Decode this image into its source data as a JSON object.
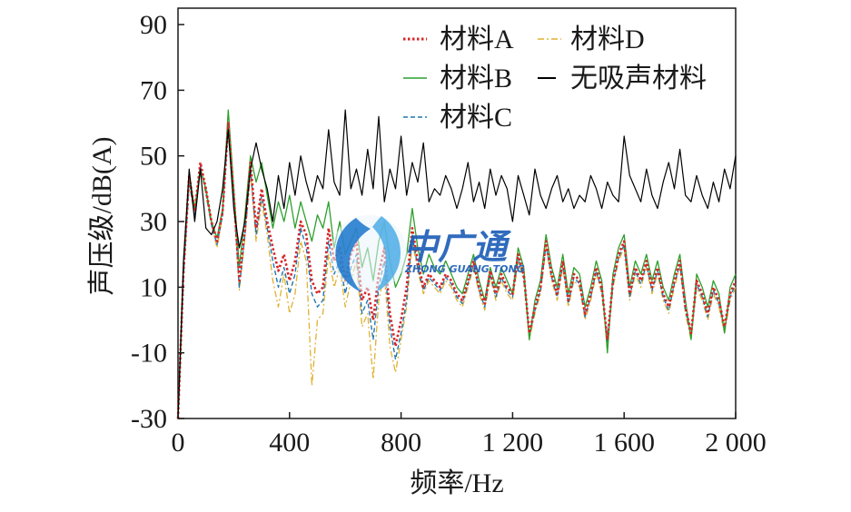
{
  "chart_data": {
    "type": "line",
    "title": "",
    "xlabel": "频率/Hz",
    "ylabel": "声压级/dB(A)",
    "xlim": [
      0,
      2000
    ],
    "ylim": [
      -30,
      95
    ],
    "x_ticks": [
      0,
      400,
      800,
      1200,
      1600,
      2000
    ],
    "x_tick_labels": [
      "0",
      "400",
      "800",
      "1 200",
      "1 600",
      "2 000"
    ],
    "y_ticks": [
      -30,
      -10,
      10,
      30,
      50,
      70,
      90
    ],
    "y_tick_labels": [
      "-30",
      "-10",
      "10",
      "30",
      "50",
      "70",
      "90"
    ],
    "grid": false,
    "legend_position": "top-right",
    "x": [
      0,
      20,
      40,
      60,
      80,
      100,
      120,
      140,
      160,
      180,
      200,
      220,
      240,
      260,
      280,
      300,
      320,
      340,
      360,
      380,
      400,
      420,
      440,
      460,
      480,
      500,
      520,
      540,
      560,
      580,
      600,
      620,
      640,
      660,
      680,
      700,
      720,
      740,
      760,
      780,
      800,
      820,
      840,
      860,
      880,
      900,
      920,
      940,
      960,
      980,
      1000,
      1020,
      1040,
      1060,
      1080,
      1100,
      1120,
      1140,
      1160,
      1180,
      1200,
      1220,
      1240,
      1260,
      1280,
      1300,
      1320,
      1340,
      1360,
      1380,
      1400,
      1420,
      1440,
      1460,
      1480,
      1500,
      1520,
      1540,
      1560,
      1580,
      1600,
      1620,
      1640,
      1660,
      1680,
      1700,
      1720,
      1740,
      1760,
      1780,
      1800,
      1820,
      1840,
      1860,
      1880,
      1900,
      1920,
      1940,
      1960,
      1980,
      2000
    ],
    "series": [
      {
        "name": "材料A",
        "color": "#d62728",
        "dash": "dotted",
        "values": [
          -30,
          15,
          44,
          33,
          48,
          40,
          30,
          24,
          33,
          60,
          38,
          12,
          28,
          48,
          28,
          40,
          30,
          22,
          15,
          20,
          12,
          18,
          30,
          26,
          12,
          8,
          10,
          28,
          18,
          22,
          12,
          20,
          24,
          6,
          10,
          0,
          14,
          22,
          2,
          -8,
          0,
          10,
          28,
          18,
          10,
          14,
          12,
          10,
          14,
          12,
          8,
          6,
          12,
          18,
          10,
          5,
          15,
          8,
          14,
          10,
          8,
          20,
          14,
          -4,
          4,
          10,
          24,
          14,
          8,
          18,
          6,
          14,
          12,
          2,
          8,
          16,
          10,
          -6,
          12,
          20,
          24,
          8,
          16,
          12,
          18,
          10,
          16,
          8,
          4,
          12,
          18,
          4,
          -4,
          12,
          8,
          2,
          10,
          6,
          -2,
          8,
          12
        ]
      },
      {
        "name": "材料B",
        "color": "#2ca02c",
        "dash": "solid",
        "values": [
          -30,
          18,
          44,
          34,
          46,
          40,
          30,
          25,
          34,
          64,
          40,
          16,
          32,
          50,
          42,
          48,
          38,
          28,
          36,
          30,
          38,
          28,
          36,
          30,
          24,
          32,
          28,
          36,
          22,
          30,
          20,
          24,
          28,
          16,
          22,
          12,
          24,
          30,
          18,
          10,
          14,
          20,
          34,
          22,
          14,
          20,
          16,
          14,
          18,
          14,
          10,
          8,
          14,
          20,
          12,
          6,
          16,
          10,
          16,
          12,
          8,
          22,
          16,
          -6,
          6,
          12,
          26,
          16,
          10,
          20,
          8,
          16,
          14,
          4,
          10,
          18,
          12,
          -10,
          14,
          22,
          26,
          10,
          18,
          14,
          20,
          12,
          18,
          10,
          6,
          14,
          20,
          6,
          -6,
          14,
          10,
          4,
          12,
          8,
          -4,
          10,
          14
        ]
      },
      {
        "name": "材料C",
        "color": "#1f77b4",
        "dash": "dashed",
        "values": [
          -30,
          14,
          42,
          32,
          47,
          39,
          29,
          23,
          32,
          60,
          37,
          10,
          26,
          46,
          26,
          38,
          28,
          18,
          10,
          16,
          8,
          14,
          28,
          22,
          8,
          4,
          6,
          24,
          14,
          18,
          8,
          16,
          20,
          2,
          6,
          -6,
          10,
          18,
          -2,
          -12,
          -4,
          6,
          26,
          16,
          9,
          13,
          11,
          9,
          13,
          11,
          7,
          5,
          11,
          17,
          9,
          4,
          14,
          7,
          13,
          9,
          7,
          19,
          13,
          -5,
          3,
          9,
          23,
          13,
          7,
          17,
          5,
          13,
          11,
          1,
          7,
          15,
          9,
          -7,
          11,
          19,
          23,
          7,
          15,
          11,
          17,
          9,
          15,
          7,
          3,
          11,
          17,
          3,
          -5,
          11,
          7,
          1,
          9,
          5,
          -3,
          7,
          11
        ]
      },
      {
        "name": "材料D",
        "color": "#e0b030",
        "dash": "dash-dot",
        "values": [
          -30,
          13,
          42,
          32,
          47,
          38,
          29,
          22,
          32,
          59,
          36,
          9,
          25,
          45,
          24,
          36,
          26,
          12,
          4,
          14,
          2,
          8,
          24,
          18,
          -20,
          0,
          2,
          20,
          10,
          16,
          4,
          12,
          18,
          -2,
          2,
          -18,
          6,
          14,
          -8,
          -16,
          -6,
          4,
          24,
          15,
          8,
          12,
          10,
          8,
          12,
          10,
          6,
          4,
          10,
          16,
          8,
          3,
          13,
          6,
          12,
          8,
          6,
          18,
          12,
          -6,
          2,
          8,
          22,
          12,
          6,
          16,
          4,
          12,
          10,
          0,
          6,
          14,
          8,
          -8,
          10,
          18,
          22,
          6,
          14,
          10,
          16,
          8,
          14,
          6,
          2,
          10,
          16,
          2,
          -6,
          10,
          6,
          0,
          8,
          4,
          -4,
          6,
          10
        ]
      },
      {
        "name": "无吸声材料",
        "color": "#000000",
        "dash": "solid",
        "values": [
          -30,
          18,
          46,
          30,
          46,
          28,
          26,
          30,
          40,
          58,
          34,
          22,
          30,
          46,
          54,
          46,
          40,
          30,
          44,
          34,
          48,
          38,
          50,
          42,
          36,
          44,
          40,
          58,
          42,
          38,
          64,
          40,
          46,
          38,
          52,
          40,
          62,
          36,
          46,
          40,
          56,
          38,
          48,
          42,
          54,
          36,
          40,
          38,
          44,
          40,
          34,
          40,
          48,
          36,
          42,
          34,
          46,
          38,
          44,
          40,
          30,
          44,
          38,
          32,
          46,
          38,
          34,
          40,
          44,
          36,
          40,
          34,
          38,
          36,
          44,
          40,
          34,
          42,
          38,
          36,
          56,
          44,
          40,
          36,
          46,
          38,
          34,
          42,
          48,
          40,
          52,
          38,
          36,
          44,
          38,
          34,
          42,
          36,
          46,
          40,
          50
        ]
      }
    ]
  },
  "legend": [
    {
      "label": "材料A",
      "color": "#d62728",
      "style": "dotted"
    },
    {
      "label": "材料D",
      "color": "#e0b030",
      "style": "dash-dot"
    },
    {
      "label": "材料B",
      "color": "#2ca02c",
      "style": "solid"
    },
    {
      "label": "无吸声材料",
      "color": "#000000",
      "style": "solid"
    },
    {
      "label": "材料C",
      "color": "#1f77b4",
      "style": "dashed"
    }
  ],
  "watermark": {
    "text_cn": "中广通",
    "text_en": "ZHONG GUANG TONG",
    "color": "#1f5fb8"
  }
}
